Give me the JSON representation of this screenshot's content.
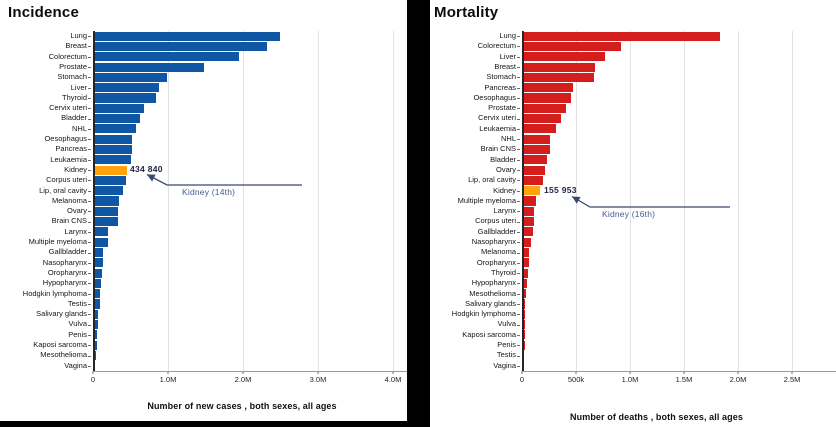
{
  "app": {
    "background_color": "#000000",
    "panel_color": "#ffffff"
  },
  "chart_data": [
    {
      "key": "incidence",
      "type": "bar",
      "orientation": "horizontal",
      "title": "Incidence",
      "xlabel": "Number of new cases , both sexes, all ages",
      "bar_color": "#0F57A5",
      "highlight_color": "#FFA30F",
      "highlight_category": "Kidney",
      "annotation": {
        "value_label": "434 840",
        "rank_label": "Kidney (14th)"
      },
      "xlim": [
        0,
        4000000
      ],
      "grid": true,
      "axis_ticks": [
        {
          "value": 0,
          "label": "0"
        },
        {
          "value": 1000000,
          "label": "1.0M"
        },
        {
          "value": 2000000,
          "label": "2.0M"
        },
        {
          "value": 3000000,
          "label": "3.0M"
        },
        {
          "value": 4000000,
          "label": "4.0M"
        }
      ],
      "categories": [
        "Lung",
        "Breast",
        "Colorectum",
        "Prostate",
        "Stomach",
        "Liver",
        "Thyroid",
        "Cervix uteri",
        "Bladder",
        "NHL",
        "Oesophagus",
        "Pancreas",
        "Leukaemia",
        "Kidney",
        "Corpus uteri",
        "Lip, oral cavity",
        "Melanoma",
        "Ovary",
        "Brain CNS",
        "Larynx",
        "Multiple myeloma",
        "Gallbladder",
        "Nasopharynx",
        "Oropharynx",
        "Hypopharynx",
        "Hodgkin lymphoma",
        "Testis",
        "Salivary glands",
        "Vulva",
        "Penis",
        "Kaposi sarcoma",
        "Mesothelioma",
        "Vagina"
      ],
      "values": [
        2480000,
        2300000,
        1930000,
        1470000,
        970000,
        870000,
        820000,
        660000,
        615000,
        555000,
        512000,
        510000,
        487000,
        434840,
        420000,
        390000,
        332000,
        325000,
        322000,
        189000,
        188000,
        122000,
        120000,
        106000,
        88000,
        83000,
        74000,
        55000,
        47000,
        38000,
        35000,
        30000,
        19000
      ]
    },
    {
      "key": "mortality",
      "type": "bar",
      "orientation": "horizontal",
      "title": "Mortality",
      "xlabel": "Number of deaths , both sexes, all ages",
      "bar_color": "#D41E1E",
      "highlight_color": "#FFA30F",
      "highlight_category": "Kidney",
      "annotation": {
        "value_label": "155 953",
        "rank_label": "Kidney (16th)"
      },
      "xlim": [
        0,
        2500000
      ],
      "grid": true,
      "axis_ticks": [
        {
          "value": 0,
          "label": "0"
        },
        {
          "value": 500000,
          "label": "500k"
        },
        {
          "value": 1000000,
          "label": "1.0M"
        },
        {
          "value": 1500000,
          "label": "1.5M"
        },
        {
          "value": 2000000,
          "label": "2.0M"
        },
        {
          "value": 2500000,
          "label": "2.5M"
        }
      ],
      "categories": [
        "Lung",
        "Colorectum",
        "Liver",
        "Breast",
        "Stomach",
        "Pancreas",
        "Oesophagus",
        "Prostate",
        "Cervix uteri",
        "Leukaemia",
        "NHL",
        "Brain CNS",
        "Bladder",
        "Ovary",
        "Lip, oral cavity",
        "Kidney",
        "Multiple myeloma",
        "Larynx",
        "Corpus uteri",
        "Gallbladder",
        "Nasopharynx",
        "Melanoma",
        "Oropharynx",
        "Thyroid",
        "Hypopharynx",
        "Mesothelioma",
        "Salivary glands",
        "Hodgkin lymphoma",
        "Vulva",
        "Kaposi sarcoma",
        "Penis",
        "Testis",
        "Vagina"
      ],
      "values": [
        1820000,
        904000,
        759000,
        666000,
        660000,
        467000,
        445000,
        397000,
        349000,
        305000,
        250000,
        248000,
        221000,
        207000,
        188000,
        155953,
        121000,
        103000,
        98000,
        89000,
        73000,
        59000,
        52000,
        48000,
        38000,
        25000,
        23000,
        22000,
        19000,
        15000,
        14000,
        9000,
        8000
      ]
    }
  ]
}
